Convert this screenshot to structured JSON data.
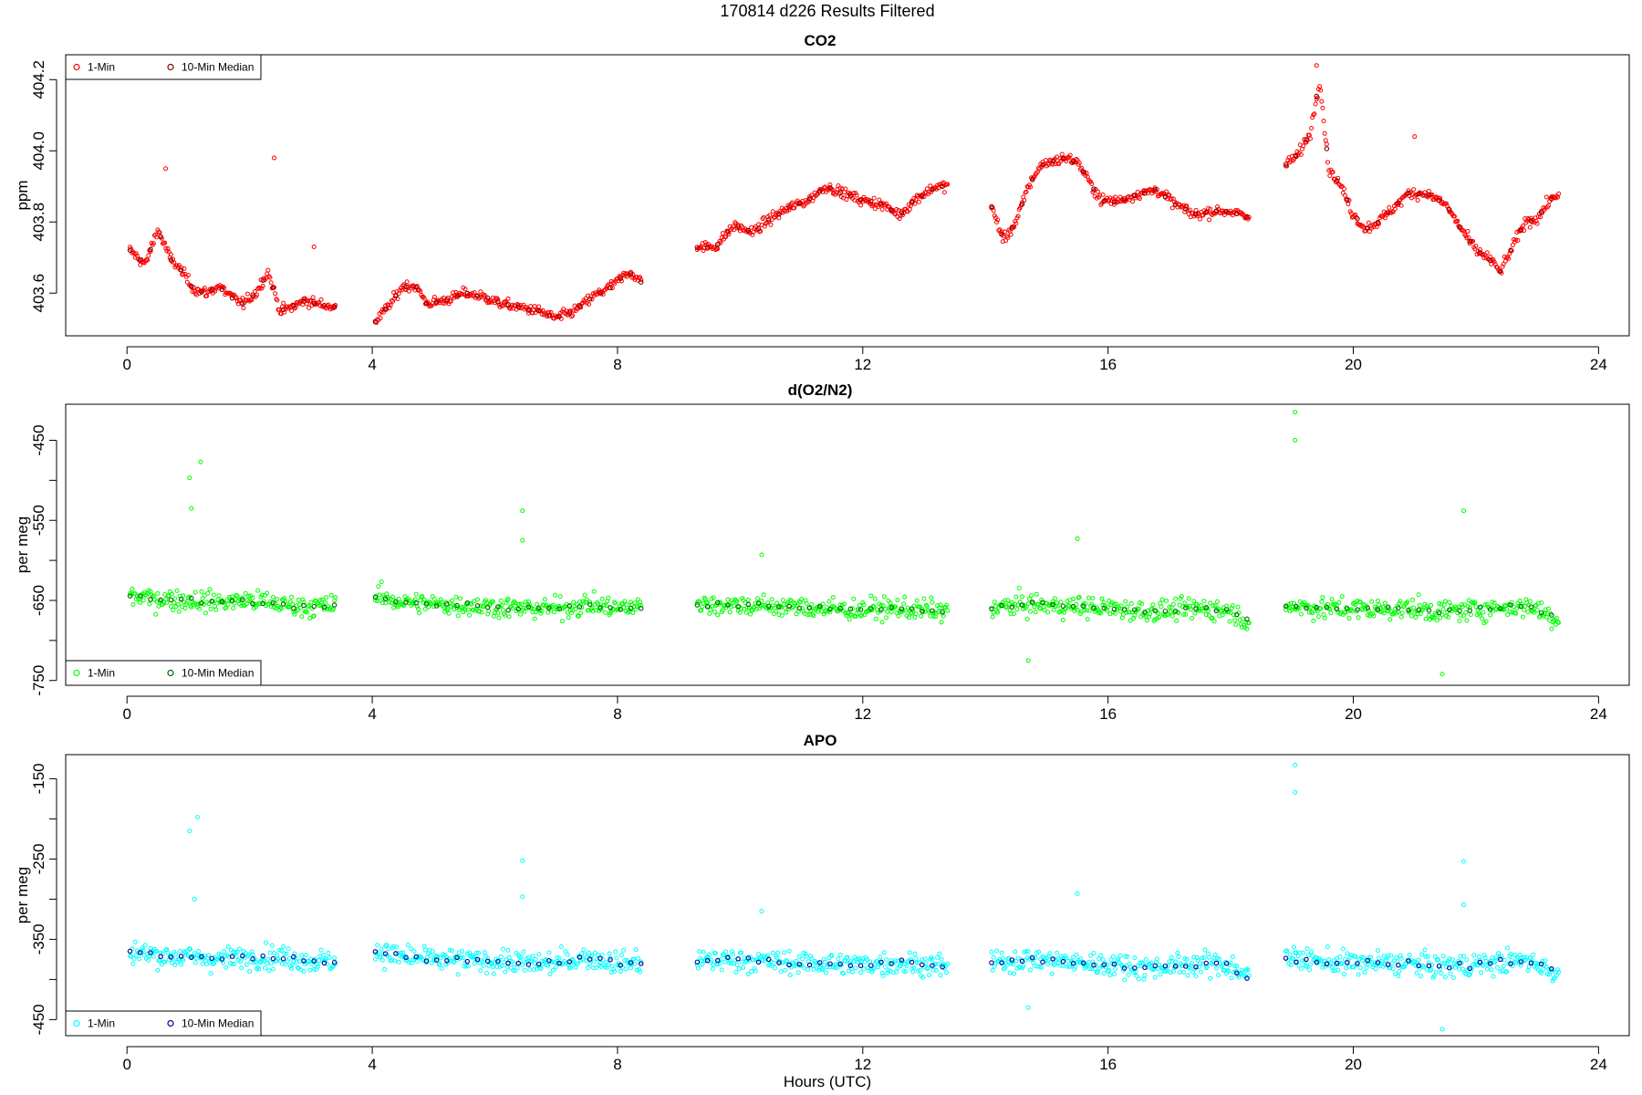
{
  "figure": {
    "title": "170814   d226   Results Filtered",
    "xlabel": "Hours (UTC)"
  },
  "chart_data": [
    {
      "type": "scatter",
      "title": "CO2",
      "xlabel": "",
      "ylabel": "ppm",
      "xlim": [
        -1,
        24.5
      ],
      "ylim": [
        403.48,
        404.27
      ],
      "x_ticks": [
        0,
        4,
        8,
        12,
        16,
        20,
        24
      ],
      "y_ticks": [
        403.6,
        403.8,
        404.0,
        404.2
      ],
      "y_tick_labels": [
        "403.6",
        "403.8",
        "404.0",
        "404.2"
      ],
      "grid": false,
      "legend_position": "top-left",
      "series": [
        {
          "name": "1-Min",
          "color": "#ff0000",
          "marker": "open-circle"
        },
        {
          "name": "10-Min Median",
          "color": "#8b0000",
          "marker": "open-circle"
        }
      ],
      "segments": [
        {
          "x": [
            0.05,
            0.3,
            0.5,
            0.7,
            0.9,
            1.1,
            1.3,
            1.5,
            1.7,
            1.9,
            2.1,
            2.3,
            2.5,
            2.7,
            2.9,
            3.1,
            3.4
          ],
          "y": [
            403.72,
            403.68,
            403.78,
            403.7,
            403.66,
            403.61,
            403.6,
            403.62,
            403.59,
            403.57,
            403.6,
            403.66,
            403.55,
            403.56,
            403.58,
            403.57,
            403.56
          ]
        },
        {
          "x": [
            4.05,
            4.3,
            4.5,
            4.7,
            4.9,
            5.2,
            5.5,
            5.8,
            6.1,
            6.4,
            6.7,
            7.0,
            7.3,
            7.6,
            7.9,
            8.2,
            8.4
          ],
          "y": [
            403.52,
            403.57,
            403.62,
            403.62,
            403.57,
            403.58,
            403.6,
            403.59,
            403.57,
            403.56,
            403.55,
            403.53,
            403.55,
            403.59,
            403.62,
            403.66,
            403.63
          ]
        },
        {
          "x": [
            9.3,
            9.6,
            9.9,
            10.2,
            10.5,
            10.8,
            11.1,
            11.4,
            11.7,
            12.0,
            12.3,
            12.6,
            12.9,
            13.2,
            13.4
          ],
          "y": [
            403.73,
            403.73,
            403.79,
            403.77,
            403.81,
            403.84,
            403.86,
            403.9,
            403.88,
            403.86,
            403.85,
            403.82,
            403.87,
            403.9,
            403.9
          ]
        },
        {
          "x": [
            14.1,
            14.3,
            14.5,
            14.7,
            14.9,
            15.1,
            15.3,
            15.5,
            15.7,
            15.9,
            16.2,
            16.5,
            16.8,
            17.1,
            17.4,
            17.7,
            18.0,
            18.3
          ],
          "y": [
            403.84,
            403.75,
            403.8,
            403.9,
            403.96,
            403.97,
            403.98,
            403.97,
            403.91,
            403.86,
            403.86,
            403.88,
            403.89,
            403.85,
            403.82,
            403.83,
            403.83,
            403.81
          ]
        },
        {
          "x": [
            18.9,
            19.1,
            19.3,
            19.45,
            19.6,
            19.8,
            20.0,
            20.2,
            20.4,
            20.6,
            20.9,
            21.2,
            21.5,
            21.8,
            22.0,
            22.2,
            22.4,
            22.6,
            22.8,
            23.0,
            23.2,
            23.35
          ],
          "y": [
            403.96,
            403.99,
            404.05,
            404.2,
            403.95,
            403.9,
            403.82,
            403.78,
            403.8,
            403.83,
            403.88,
            403.88,
            403.85,
            403.77,
            403.72,
            403.7,
            403.66,
            403.73,
            403.8,
            403.81,
            403.86,
            403.88
          ]
        }
      ],
      "outliers": [
        {
          "x": 0.63,
          "y": 403.95
        },
        {
          "x": 2.4,
          "y": 403.98
        },
        {
          "x": 3.05,
          "y": 403.73
        },
        {
          "x": 19.4,
          "y": 404.24
        },
        {
          "x": 21.0,
          "y": 404.04
        }
      ]
    },
    {
      "type": "scatter",
      "title": "d(O2/N2)",
      "xlabel": "",
      "ylabel": "per meg",
      "xlim": [
        -1,
        24.5
      ],
      "ylim": [
        -756,
        -405
      ],
      "x_ticks": [
        0,
        4,
        8,
        12,
        16,
        20,
        24
      ],
      "y_ticks": [
        -450,
        -500,
        -550,
        -600,
        -650,
        -700,
        -750
      ],
      "y_tick_labels": [
        "-450",
        "",
        "-550",
        "",
        "-650",
        "",
        "-750"
      ],
      "grid": false,
      "legend_position": "bottom-left",
      "series": [
        {
          "name": "1-Min",
          "color": "#00ff00",
          "marker": "open-circle"
        },
        {
          "name": "10-Min Median",
          "color": "#006400",
          "marker": "open-circle"
        }
      ],
      "segments": [
        {
          "x": [
            0.05,
            0.5,
            1.0,
            1.5,
            2.0,
            2.5,
            3.0,
            3.4
          ],
          "y": [
            -645,
            -648,
            -650,
            -652,
            -650,
            -655,
            -658,
            -656
          ]
        },
        {
          "x": [
            4.05,
            4.5,
            5.0,
            5.5,
            6.0,
            6.5,
            7.0,
            7.5,
            8.0,
            8.4
          ],
          "y": [
            -645,
            -652,
            -655,
            -656,
            -658,
            -660,
            -660,
            -655,
            -660,
            -657
          ]
        },
        {
          "x": [
            9.3,
            9.8,
            10.3,
            10.8,
            11.3,
            11.8,
            12.3,
            12.8,
            13.4
          ],
          "y": [
            -656,
            -655,
            -657,
            -658,
            -660,
            -662,
            -660,
            -661,
            -664
          ]
        },
        {
          "x": [
            14.1,
            14.6,
            15.1,
            15.6,
            16.1,
            16.6,
            17.1,
            17.6,
            18.0,
            18.3
          ],
          "y": [
            -660,
            -655,
            -657,
            -658,
            -660,
            -664,
            -662,
            -660,
            -663,
            -677
          ]
        },
        {
          "x": [
            18.9,
            19.4,
            19.9,
            20.4,
            20.9,
            21.4,
            21.9,
            22.4,
            22.9,
            23.35
          ],
          "y": [
            -655,
            -660,
            -660,
            -661,
            -660,
            -664,
            -662,
            -659,
            -657,
            -675
          ]
        }
      ],
      "outliers": [
        {
          "x": 1.02,
          "y": -497
        },
        {
          "x": 1.2,
          "y": -477
        },
        {
          "x": 1.05,
          "y": -535
        },
        {
          "x": 6.45,
          "y": -538
        },
        {
          "x": 6.45,
          "y": -575
        },
        {
          "x": 10.35,
          "y": -593
        },
        {
          "x": 15.5,
          "y": -573
        },
        {
          "x": 19.05,
          "y": -415
        },
        {
          "x": 19.05,
          "y": -450
        },
        {
          "x": 21.8,
          "y": -538
        },
        {
          "x": 21.45,
          "y": -742
        },
        {
          "x": 14.7,
          "y": -725
        }
      ]
    },
    {
      "type": "scatter",
      "title": "APO",
      "xlabel": "Hours (UTC)",
      "ylabel": "per meg",
      "xlim": [
        -1,
        24.5
      ],
      "ylim": [
        -470,
        -120
      ],
      "x_ticks": [
        0,
        4,
        8,
        12,
        16,
        20,
        24
      ],
      "y_ticks": [
        -150,
        -200,
        -250,
        -300,
        -350,
        -400,
        -450
      ],
      "y_tick_labels": [
        "-150",
        "",
        "-250",
        "",
        "-350",
        "",
        "-450"
      ],
      "grid": false,
      "legend_position": "bottom-left",
      "series": [
        {
          "name": "1-Min",
          "color": "#00ffff",
          "marker": "open-circle"
        },
        {
          "name": "10-Min Median",
          "color": "#00008b",
          "marker": "open-circle"
        }
      ],
      "segments": [
        {
          "x": [
            0.05,
            0.5,
            1.0,
            1.5,
            2.0,
            2.5,
            3.0,
            3.4
          ],
          "y": [
            -365,
            -370,
            -372,
            -375,
            -372,
            -372,
            -377,
            -377
          ]
        },
        {
          "x": [
            4.05,
            4.5,
            5.0,
            5.5,
            6.0,
            6.5,
            7.0,
            7.5,
            8.0,
            8.4
          ],
          "y": [
            -365,
            -372,
            -375,
            -377,
            -377,
            -380,
            -380,
            -372,
            -380,
            -378
          ]
        },
        {
          "x": [
            9.3,
            9.8,
            10.3,
            10.8,
            11.3,
            11.8,
            12.3,
            12.8,
            13.4
          ],
          "y": [
            -378,
            -375,
            -377,
            -379,
            -380,
            -382,
            -380,
            -380,
            -384
          ]
        },
        {
          "x": [
            14.1,
            14.6,
            15.1,
            15.6,
            16.1,
            16.6,
            17.1,
            17.6,
            18.0,
            18.3
          ],
          "y": [
            -380,
            -375,
            -377,
            -380,
            -381,
            -385,
            -383,
            -380,
            -383,
            -398
          ]
        },
        {
          "x": [
            18.9,
            19.4,
            19.9,
            20.4,
            20.9,
            21.4,
            21.9,
            22.4,
            22.9,
            23.35
          ],
          "y": [
            -372,
            -377,
            -380,
            -380,
            -380,
            -384,
            -382,
            -379,
            -376,
            -395
          ]
        }
      ],
      "outliers": [
        {
          "x": 1.15,
          "y": -198
        },
        {
          "x": 1.02,
          "y": -215
        },
        {
          "x": 1.1,
          "y": -300
        },
        {
          "x": 6.45,
          "y": -252
        },
        {
          "x": 6.45,
          "y": -297
        },
        {
          "x": 10.35,
          "y": -315
        },
        {
          "x": 15.5,
          "y": -293
        },
        {
          "x": 19.05,
          "y": -133
        },
        {
          "x": 19.05,
          "y": -167
        },
        {
          "x": 21.8,
          "y": -253
        },
        {
          "x": 21.8,
          "y": -307
        },
        {
          "x": 21.45,
          "y": -462
        },
        {
          "x": 14.7,
          "y": -435
        }
      ]
    }
  ]
}
